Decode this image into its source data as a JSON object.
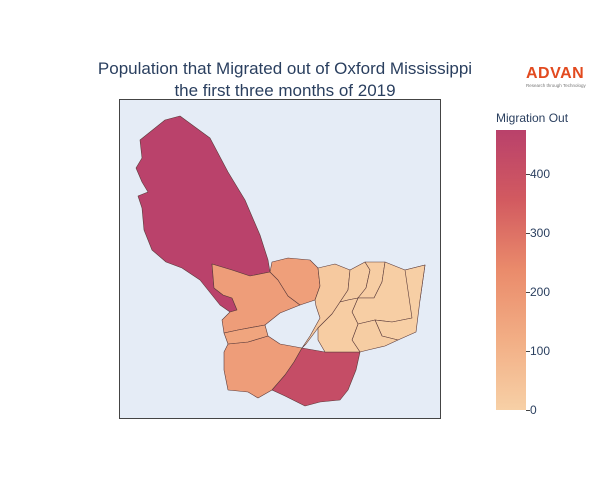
{
  "title": {
    "line1": "Population that Migrated out of Oxford Mississippi",
    "line2": "the first three months of 2019"
  },
  "logo": {
    "brand": "ADVAN",
    "tagline": "Research through Technology"
  },
  "colorbar": {
    "title": "Migration Out",
    "ticks": [
      "0",
      "100",
      "200",
      "300",
      "400"
    ],
    "range": [
      0,
      475
    ],
    "colors": [
      "#f7d0a6",
      "#f2ae85",
      "#ea8b6b",
      "#d25a60",
      "#b9416b"
    ]
  },
  "colors": {
    "map_background": "#e5ecf6",
    "region_border": "#5a3a3a"
  },
  "regions": [
    {
      "name": "northwest",
      "value": 470
    },
    {
      "name": "west-central",
      "value": 175
    },
    {
      "name": "north-central",
      "value": 170
    },
    {
      "name": "southwest",
      "value": 175
    },
    {
      "name": "south",
      "value": 420
    },
    {
      "name": "center",
      "value": 25
    },
    {
      "name": "north-east-a",
      "value": 15
    },
    {
      "name": "north-east-b",
      "value": 10
    },
    {
      "name": "north-east-c",
      "value": 8
    },
    {
      "name": "east",
      "value": 5
    },
    {
      "name": "south-east",
      "value": 12
    },
    {
      "name": "center-south",
      "value": 10
    },
    {
      "name": "west-strip",
      "value": 150
    }
  ]
}
